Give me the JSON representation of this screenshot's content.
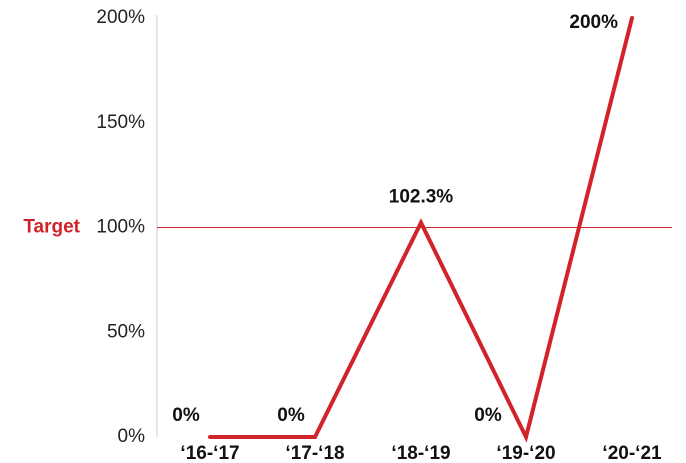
{
  "chart_data": {
    "type": "line",
    "categories": [
      "‘16-‘17",
      "‘17-‘18",
      "‘18-‘19",
      "‘19-‘20",
      "‘20-‘21"
    ],
    "values": [
      0,
      0,
      102.3,
      0,
      200
    ],
    "data_labels": [
      "0%",
      "0%",
      "102.3%",
      "0%",
      "200%"
    ],
    "y_ticks": [
      {
        "value": 0,
        "label": "0%"
      },
      {
        "value": 50,
        "label": "50%"
      },
      {
        "value": 100,
        "label": "100%"
      },
      {
        "value": 150,
        "label": "150%"
      },
      {
        "value": 200,
        "label": "200%"
      }
    ],
    "ylim": [
      0,
      200
    ],
    "grid": false,
    "target": {
      "value": 100,
      "label": "Target"
    },
    "colors": {
      "line": "#d2232a",
      "target": "#d2232a",
      "axis": "#cccccc",
      "text": "#111111"
    }
  }
}
